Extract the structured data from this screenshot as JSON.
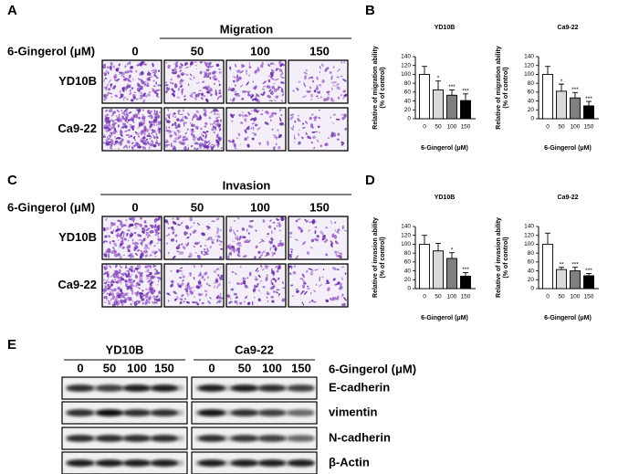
{
  "panel_labels": [
    "A",
    "B",
    "C",
    "D",
    "E"
  ],
  "migration": {
    "title": "Migration",
    "treatment_label": "6-Gingerol (μM)",
    "doses": [
      "0",
      "50",
      "100",
      "150"
    ],
    "cell_lines": [
      "YD10B",
      "Ca9-22"
    ]
  },
  "invasion": {
    "title": "Invasion",
    "treatment_label": "6-Gingerol (μM)",
    "doses": [
      "0",
      "50",
      "100",
      "150"
    ],
    "cell_lines": [
      "YD10B",
      "Ca9-22"
    ]
  },
  "chart_data": [
    {
      "type": "bar",
      "title": "YD10B",
      "y_label": [
        "Relative of migration ability",
        "(% of control)"
      ],
      "x_label": "6-Gingerol (μM)",
      "categories": [
        "0",
        "50",
        "100",
        "150"
      ],
      "values": [
        100,
        65,
        53,
        41
      ],
      "errors": [
        18,
        20,
        12,
        15
      ],
      "annotations": [
        null,
        "*",
        "***",
        "***"
      ],
      "colors": [
        "#ffffff",
        "#d9d9d9",
        "#7f7f7f",
        "#000000"
      ],
      "ylim": [
        0,
        140
      ],
      "yticks": [
        0,
        20,
        40,
        60,
        80,
        100,
        120,
        140
      ]
    },
    {
      "type": "bar",
      "title": "Ca9-22",
      "y_label": [
        "Relative of migration ability",
        "(% of control)"
      ],
      "x_label": "6-Gingerol (μM)",
      "categories": [
        "0",
        "50",
        "100",
        "150"
      ],
      "values": [
        100,
        62,
        47,
        29
      ],
      "errors": [
        18,
        16,
        12,
        10
      ],
      "annotations": [
        null,
        "*",
        "***",
        "***"
      ],
      "colors": [
        "#ffffff",
        "#d9d9d9",
        "#7f7f7f",
        "#000000"
      ],
      "ylim": [
        0,
        140
      ],
      "yticks": [
        0,
        20,
        40,
        60,
        80,
        100,
        120,
        140
      ]
    },
    {
      "type": "bar",
      "title": "YD10B",
      "y_label": [
        "Relative of invasion ability",
        "(% of control)"
      ],
      "x_label": "6-Gingerol (μM)",
      "categories": [
        "0",
        "50",
        "100",
        "150"
      ],
      "values": [
        100,
        85,
        68,
        28
      ],
      "errors": [
        20,
        17,
        13,
        8
      ],
      "annotations": [
        null,
        null,
        "*",
        "***"
      ],
      "colors": [
        "#ffffff",
        "#d9d9d9",
        "#7f7f7f",
        "#000000"
      ],
      "ylim": [
        0,
        140
      ],
      "yticks": [
        0,
        20,
        40,
        60,
        80,
        100,
        120,
        140
      ]
    },
    {
      "type": "bar",
      "title": "Ca9-22",
      "y_label": [
        "Relative of invasion ability",
        "(% of control)"
      ],
      "x_label": "6-Gingerol (μM)",
      "categories": [
        "0",
        "50",
        "100",
        "150"
      ],
      "values": [
        100,
        43,
        40,
        29
      ],
      "errors": [
        25,
        5,
        8,
        5
      ],
      "annotations": [
        null,
        "**",
        "***",
        "***"
      ],
      "colors": [
        "#ffffff",
        "#d9d9d9",
        "#7f7f7f",
        "#000000"
      ],
      "ylim": [
        0,
        140
      ],
      "yticks": [
        0,
        20,
        40,
        60,
        80,
        100,
        120,
        140
      ]
    }
  ],
  "western_blot": {
    "cell_lines": [
      "YD10B",
      "Ca9-22"
    ],
    "doses": [
      "0",
      "50",
      "100",
      "150"
    ],
    "treatment_label": "6-Gingerol (μM)",
    "proteins": [
      "E-cadherin",
      "vimentin",
      "N-cadherin",
      "β-Actin"
    ]
  }
}
